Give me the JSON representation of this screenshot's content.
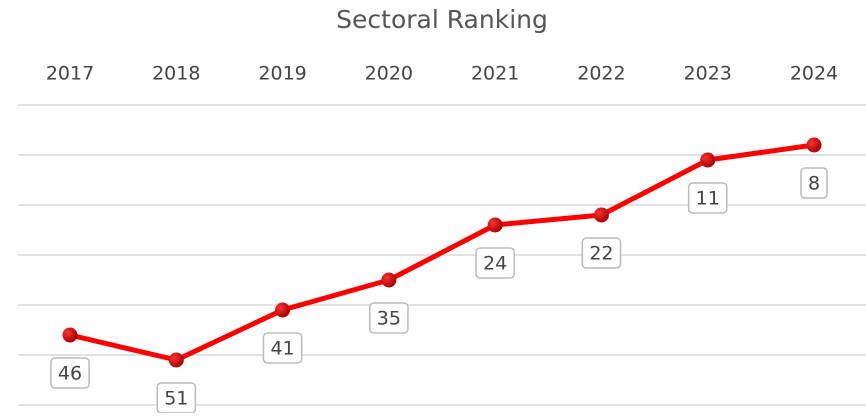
{
  "chart_data": {
    "type": "line",
    "title": "Sectoral Ranking",
    "categories": [
      "2017",
      "2018",
      "2019",
      "2020",
      "2021",
      "2022",
      "2023",
      "2024"
    ],
    "series": [
      {
        "name": "Sectoral Ranking",
        "color": "#ff0000",
        "values": [
          46,
          51,
          41,
          35,
          24,
          22,
          11,
          8
        ]
      }
    ],
    "ylim": [
      0,
      60
    ],
    "yticks": [
      0,
      10,
      20,
      30,
      40,
      50,
      60
    ],
    "y_inverted": true,
    "grid": true
  }
}
